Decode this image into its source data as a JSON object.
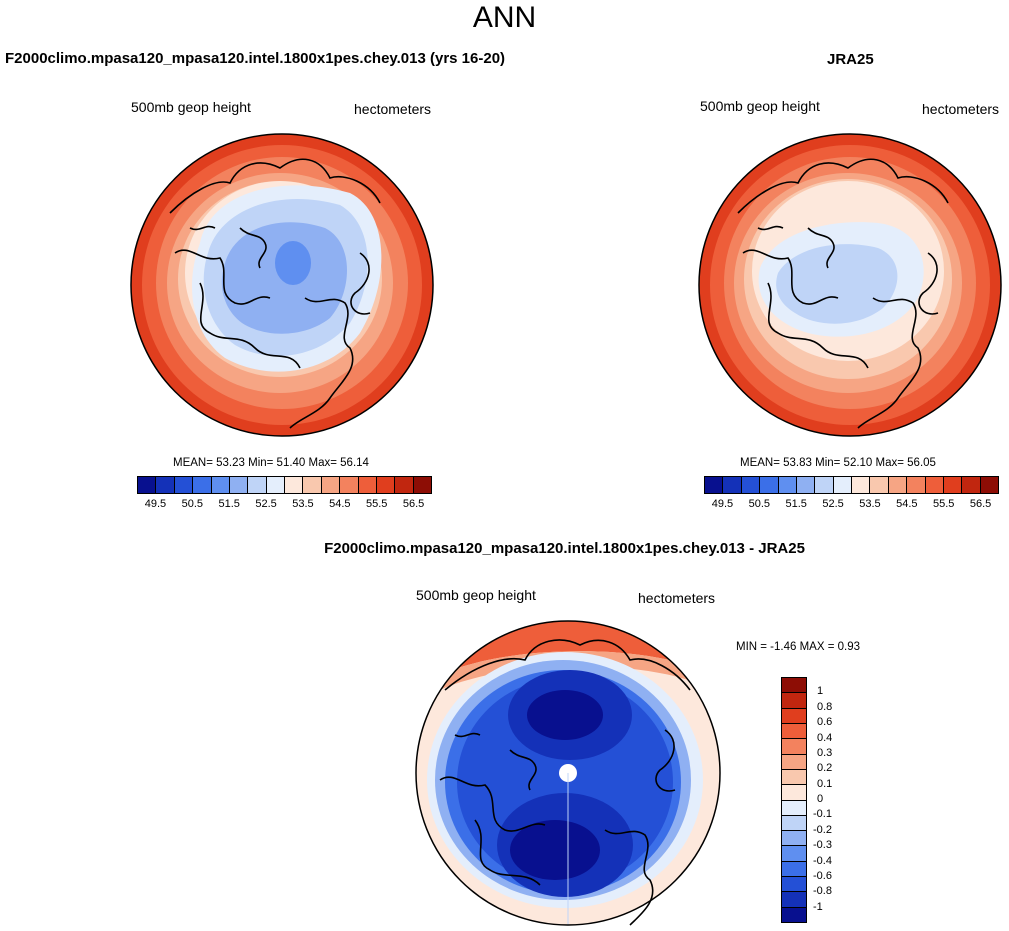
{
  "page": {
    "title": "ANN"
  },
  "panel1": {
    "title": "F2000climo.mpasa120_mpasa120.intel.1800x1pes.chey.013 (yrs 16-20)",
    "variable": "500mb geop height",
    "units": "hectometers",
    "stats": "MEAN=  53.23  Min=  51.40  Max=  56.14"
  },
  "panel2": {
    "title": "JRA25",
    "variable": "500mb geop height",
    "units": "hectometers",
    "stats": "MEAN=  53.83  Min=  52.10  Max=  56.05"
  },
  "panel3": {
    "title": "F2000climo.mpasa120_mpasa120.intel.1800x1pes.chey.013 - JRA25",
    "variable": "500mb geop height",
    "units": "hectometers",
    "stats": "MIN =  -1.46 MAX =   0.93"
  },
  "colorbar_main": {
    "ticks": [
      "49.5",
      "50.5",
      "51.5",
      "52.5",
      "53.5",
      "54.5",
      "55.5",
      "56.5"
    ],
    "colors": [
      "#08108f",
      "#1431b8",
      "#2450d6",
      "#3b6fe8",
      "#5f8ff0",
      "#8fb0f2",
      "#bfd4f7",
      "#e4eefc",
      "#fde8dc",
      "#f9c8ae",
      "#f6a584",
      "#f3825e",
      "#ee5e3a",
      "#e03e1e",
      "#c1260f",
      "#8d0d05"
    ]
  },
  "colorbar_diff": {
    "ticks": [
      "1",
      "0.8",
      "0.6",
      "0.4",
      "0.3",
      "0.2",
      "0.1",
      "0",
      "-0.1",
      "-0.2",
      "-0.3",
      "-0.4",
      "-0.6",
      "-0.8",
      "-1"
    ],
    "colors": [
      "#8d0d05",
      "#c1260f",
      "#e03e1e",
      "#ee5e3a",
      "#f3825e",
      "#f6a584",
      "#f9c8ae",
      "#fde8dc",
      "#e4eefc",
      "#bfd4f7",
      "#8fb0f2",
      "#5f8ff0",
      "#3b6fe8",
      "#2450d6",
      "#1431b8",
      "#08108f"
    ]
  }
}
